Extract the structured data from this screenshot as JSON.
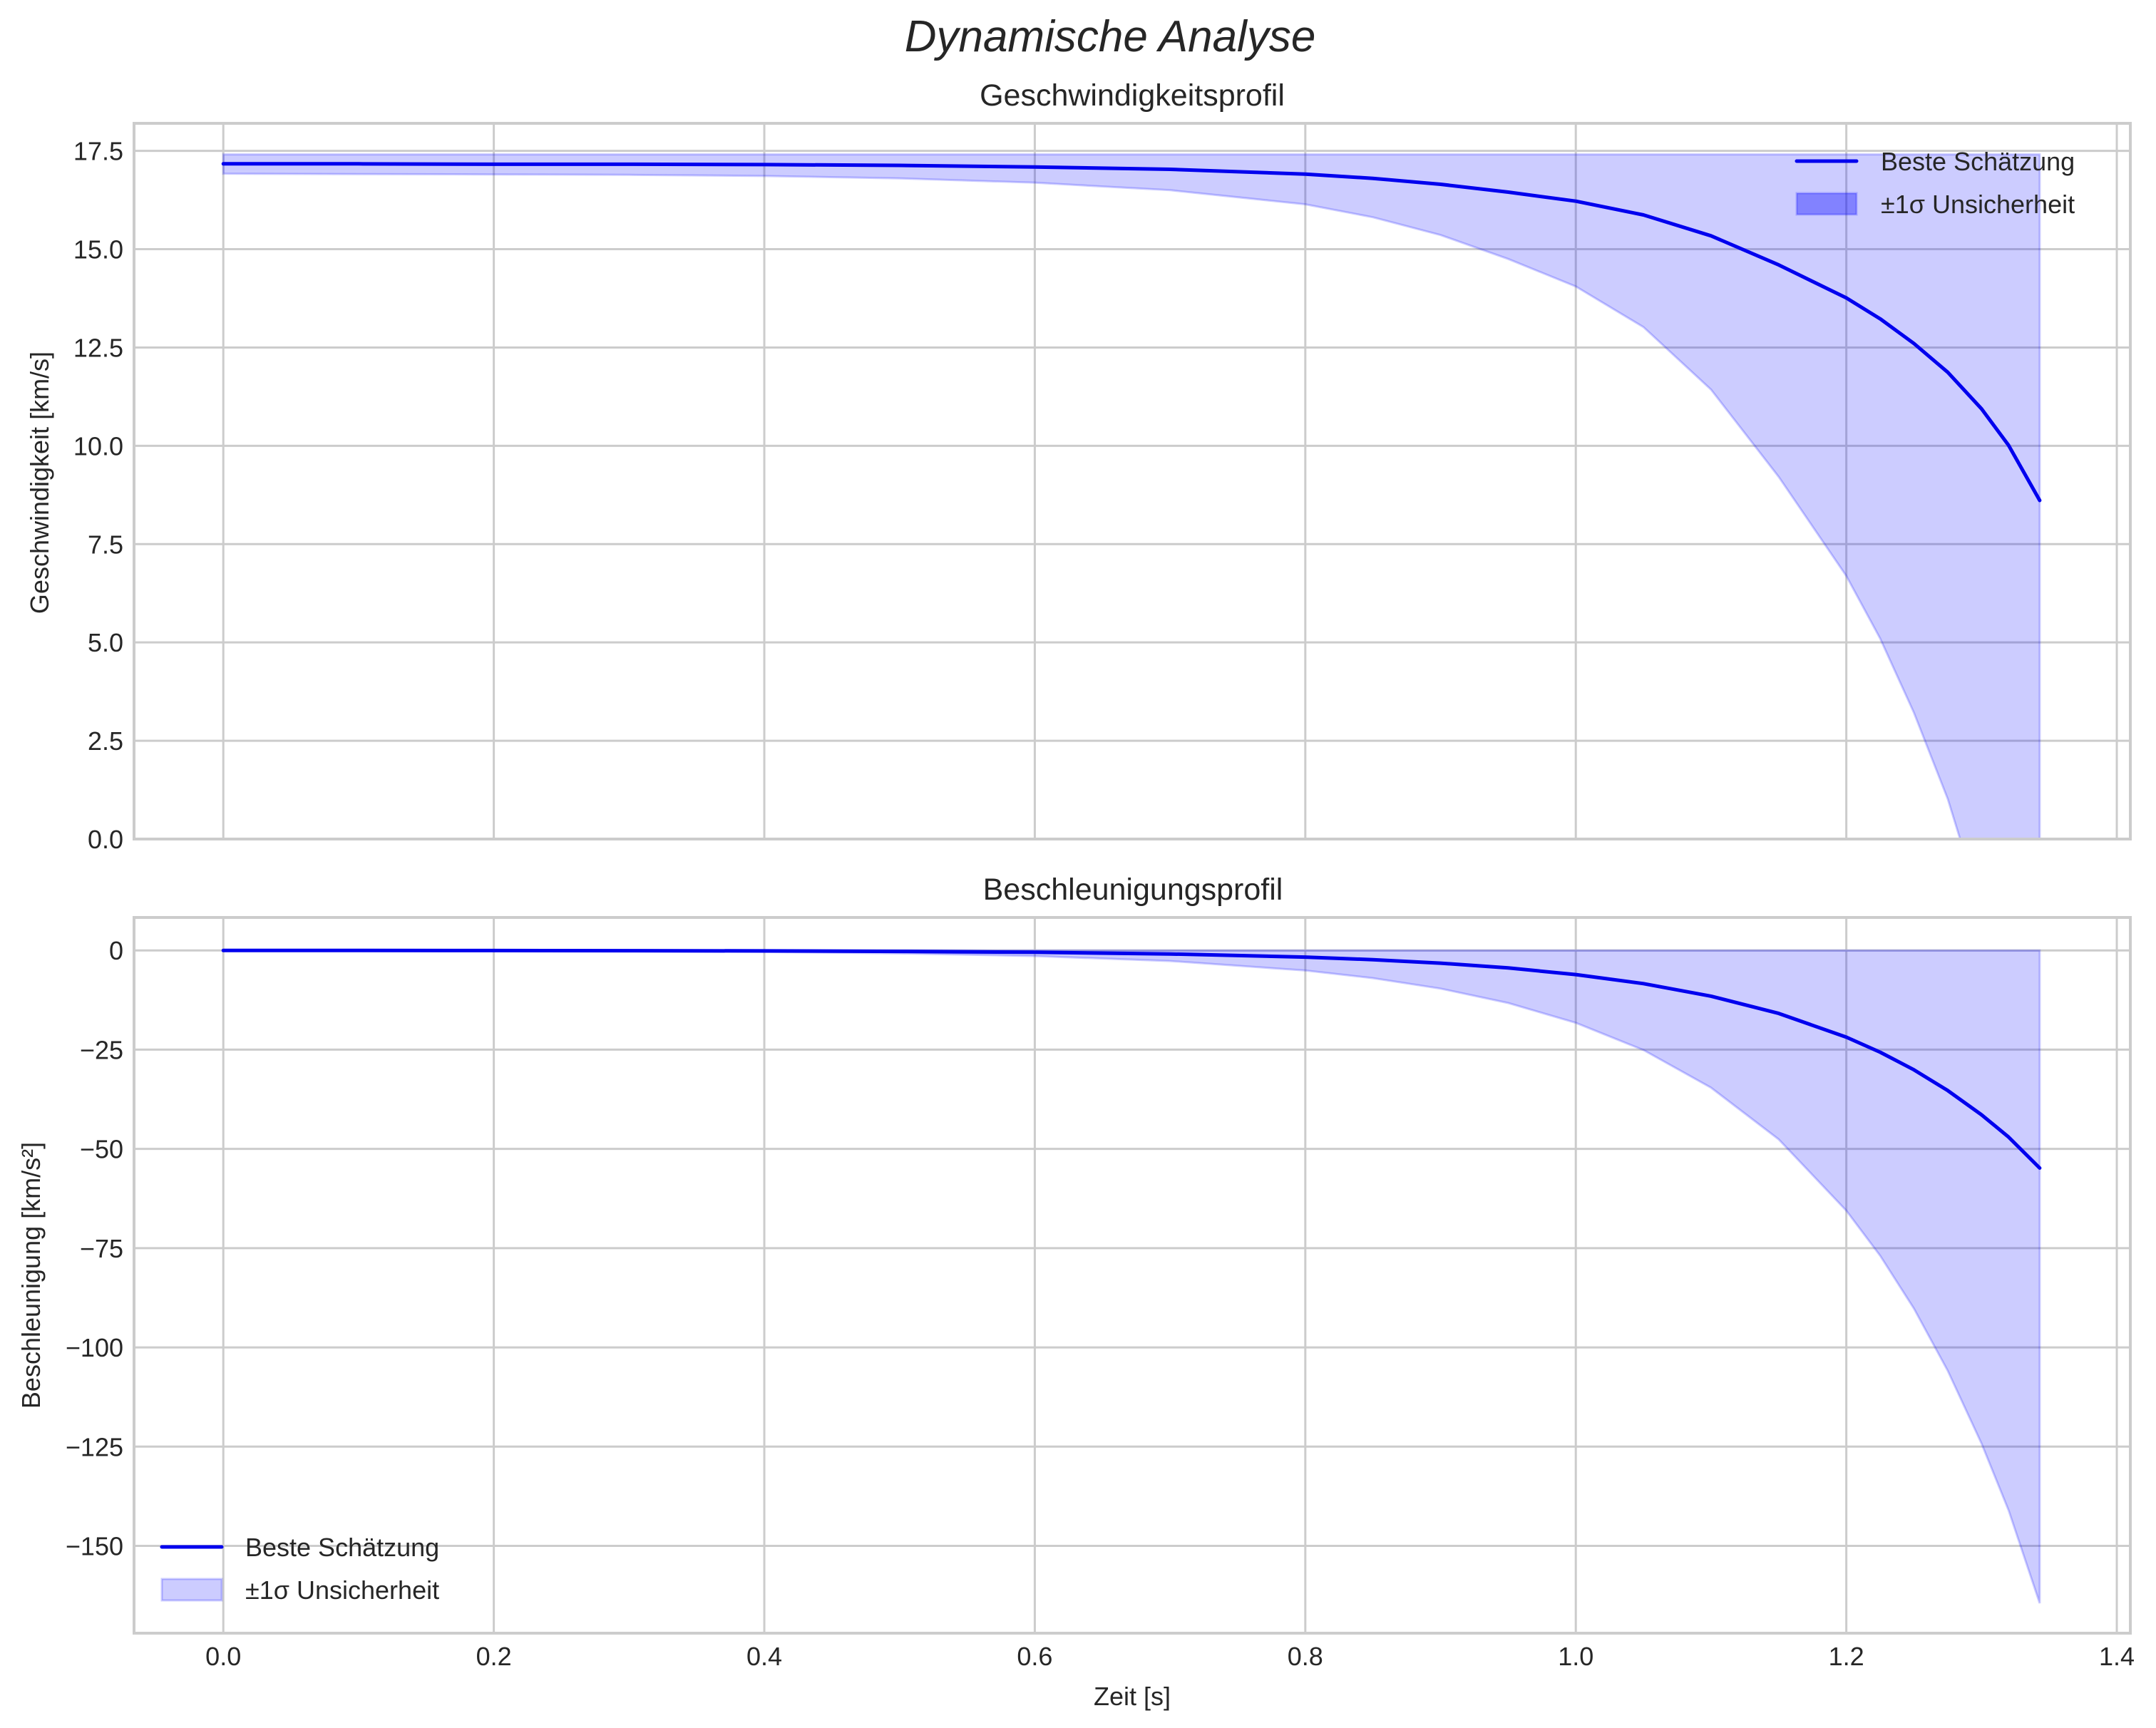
{
  "figure": {
    "suptitle": "Dynamische Analyse",
    "xlabel": "Zeit [s]",
    "colors": {
      "line": "#0000ee",
      "band_fill": "#0000ff",
      "band_alpha": 0.2,
      "grid": "#cccccc",
      "text": "#262626"
    }
  },
  "chart_data": [
    {
      "type": "line",
      "title": "Geschwindigkeitsprofil",
      "xlabel": "",
      "ylabel": "Geschwindigkeit [km/s]",
      "xlim": [
        -0.066,
        1.41
      ],
      "ylim": [
        0.0,
        18.2
      ],
      "xticks": [
        0.0,
        0.2,
        0.4,
        0.6,
        0.8,
        1.0,
        1.2,
        1.4
      ],
      "xtick_labels": [
        "0.0",
        "0.2",
        "0.4",
        "0.6",
        "0.8",
        "1.0",
        "1.2",
        "1.4"
      ],
      "yticks": [
        0.0,
        2.5,
        5.0,
        7.5,
        10.0,
        12.5,
        15.0,
        17.5
      ],
      "ytick_labels": [
        "0.0",
        "2.5",
        "5.0",
        "7.5",
        "10.0",
        "12.5",
        "15.0",
        "17.5"
      ],
      "grid": true,
      "legend": {
        "position": "upper right",
        "entries": [
          "Beste Schätzung",
          "±1σ Unsicherheit"
        ]
      },
      "x": [
        0.0,
        0.1,
        0.2,
        0.3,
        0.4,
        0.5,
        0.6,
        0.7,
        0.8,
        0.85,
        0.9,
        0.95,
        1.0,
        1.05,
        1.1,
        1.15,
        1.2,
        1.225,
        1.25,
        1.275,
        1.3,
        1.32,
        1.343
      ],
      "series": [
        {
          "name": "Beste Schätzung",
          "values": [
            17.17,
            17.17,
            17.16,
            17.16,
            17.15,
            17.13,
            17.09,
            17.03,
            16.91,
            16.8,
            16.65,
            16.45,
            16.22,
            15.87,
            15.34,
            14.6,
            13.76,
            13.23,
            12.6,
            11.87,
            10.94,
            10.01,
            8.61
          ]
        },
        {
          "name": "±1σ Unsicherheit (oben)",
          "values": [
            17.41,
            17.41,
            17.41,
            17.41,
            17.41,
            17.41,
            17.41,
            17.41,
            17.41,
            17.41,
            17.41,
            17.41,
            17.41,
            17.41,
            17.41,
            17.41,
            17.41,
            17.41,
            17.41,
            17.41,
            17.41,
            17.41,
            17.41
          ]
        },
        {
          "name": "±1σ Unsicherheit (unten)",
          "values": [
            16.92,
            16.91,
            16.9,
            16.89,
            16.86,
            16.8,
            16.69,
            16.5,
            16.14,
            15.81,
            15.36,
            14.75,
            14.05,
            13.02,
            11.43,
            9.21,
            6.69,
            5.1,
            3.21,
            1.02,
            -1.77,
            -4.56,
            -8.76
          ]
        }
      ]
    },
    {
      "type": "line",
      "title": "Beschleunigungsprofil",
      "xlabel": "Zeit [s]",
      "ylabel": "Beschleunigung [km/s²]",
      "xlim": [
        -0.066,
        1.41
      ],
      "ylim": [
        -172,
        8.3
      ],
      "xticks": [
        0.0,
        0.2,
        0.4,
        0.6,
        0.8,
        1.0,
        1.2,
        1.4
      ],
      "xtick_labels": [
        "0.0",
        "0.2",
        "0.4",
        "0.6",
        "0.8",
        "1.0",
        "1.2",
        "1.4"
      ],
      "yticks": [
        0,
        -25,
        -50,
        -75,
        -100,
        -125,
        -150
      ],
      "ytick_labels": [
        "0",
        "−25",
        "−50",
        "−75",
        "−100",
        "−125",
        "−150"
      ],
      "grid": true,
      "legend": {
        "position": "lower left",
        "entries": [
          "Beste Schätzung",
          "±1σ Unsicherheit"
        ]
      },
      "x": [
        0.0,
        0.1,
        0.2,
        0.3,
        0.4,
        0.5,
        0.6,
        0.7,
        0.8,
        0.85,
        0.9,
        0.95,
        1.0,
        1.05,
        1.1,
        1.15,
        1.2,
        1.225,
        1.25,
        1.275,
        1.3,
        1.32,
        1.343
      ],
      "series": [
        {
          "name": "Beste Schätzung",
          "values": [
            -0.01,
            -0.02,
            -0.04,
            -0.07,
            -0.13,
            -0.25,
            -0.47,
            -0.89,
            -1.69,
            -2.33,
            -3.21,
            -4.42,
            -6.08,
            -8.37,
            -11.53,
            -15.87,
            -21.85,
            -25.64,
            -30.08,
            -35.3,
            -41.41,
            -47.03,
            -54.82
          ]
        },
        {
          "name": "±1σ Unsicherheit (oben)",
          "values": [
            0,
            0,
            0,
            0,
            0,
            0,
            0,
            0,
            0,
            0,
            0,
            0,
            0,
            0,
            0,
            0,
            0,
            0,
            0,
            0,
            0,
            0,
            0
          ]
        },
        {
          "name": "±1σ Unsicherheit (unten)",
          "values": [
            -0.03,
            -0.06,
            -0.11,
            -0.21,
            -0.4,
            -0.75,
            -1.42,
            -2.68,
            -5.06,
            -6.98,
            -9.63,
            -13.25,
            -18.24,
            -25.11,
            -34.58,
            -47.61,
            -65.55,
            -76.92,
            -90.24,
            -105.89,
            -124.23,
            -141.08,
            -164.45
          ]
        }
      ]
    }
  ],
  "panels": [
    {
      "title": "Geschwindigkeitsprofil",
      "ylabel": "Geschwindigkeit [km/s]",
      "legend": {
        "line_label": "Beste Schätzung",
        "band_label": "±1σ Unsicherheit"
      }
    },
    {
      "title": "Beschleunigungsprofil",
      "ylabel": "Beschleunigung [km/s²]",
      "legend": {
        "line_label": "Beste Schätzung",
        "band_label": "±1σ Unsicherheit"
      }
    }
  ]
}
